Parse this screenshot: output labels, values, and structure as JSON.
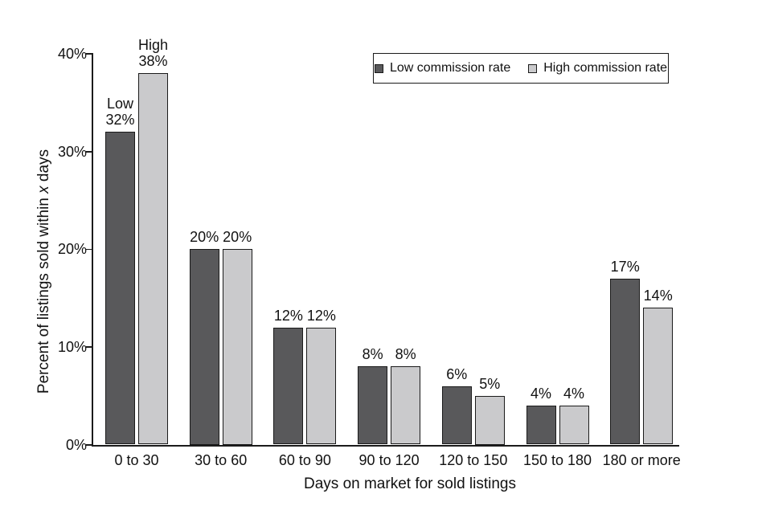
{
  "chart_data": {
    "type": "bar",
    "title": "",
    "xlabel": "Days on market for sold listings",
    "ylabel": "Percent of listings sold within x days",
    "ylabel_parts": {
      "prefix": "Percent of listings sold within ",
      "italic": "x",
      "suffix": " days"
    },
    "ylim": [
      0,
      40
    ],
    "grid": false,
    "legend_position": "top-right",
    "yticks": [
      {
        "value": 0,
        "label": "0%"
      },
      {
        "value": 10,
        "label": "10%"
      },
      {
        "value": 20,
        "label": "20%"
      },
      {
        "value": 30,
        "label": "30%"
      },
      {
        "value": 40,
        "label": "40%"
      }
    ],
    "categories": [
      "0 to 30",
      "30 to 60",
      "60 to 90",
      "90 to 120",
      "120 to 150",
      "150 to 180",
      "180 or more"
    ],
    "series": [
      {
        "name": "Low commission rate",
        "color": "#59595b",
        "values": [
          32,
          20,
          12,
          8,
          6,
          4,
          17
        ],
        "value_labels": [
          [
            "Low",
            "32%"
          ],
          [
            "20%"
          ],
          [
            "12%"
          ],
          [
            "8%"
          ],
          [
            "6%"
          ],
          [
            "4%"
          ],
          [
            "17%"
          ]
        ]
      },
      {
        "name": "High commission rate",
        "color": "#cacacc",
        "values": [
          38,
          20,
          12,
          8,
          5,
          4,
          14
        ],
        "value_labels": [
          [
            "High",
            "38%"
          ],
          [
            "20%"
          ],
          [
            "12%"
          ],
          [
            "8%"
          ],
          [
            "5%"
          ],
          [
            "4%"
          ],
          [
            "14%"
          ]
        ]
      }
    ],
    "colors": {
      "bar_border": "#1b1b1b",
      "axis": "#1b1b1b",
      "text": "#111111"
    }
  }
}
